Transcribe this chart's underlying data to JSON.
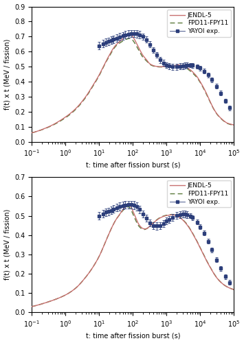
{
  "xlabel": "t: time after fission burst (s)",
  "ylabel": "f(t) x t (MeV / fission)",
  "subplot1": {
    "ylim": [
      0,
      0.9
    ],
    "yticks": [
      0,
      0.1,
      0.2,
      0.3,
      0.4,
      0.5,
      0.6,
      0.7,
      0.8,
      0.9
    ]
  },
  "subplot2": {
    "ylim": [
      0,
      0.7
    ],
    "yticks": [
      0,
      0.1,
      0.2,
      0.3,
      0.4,
      0.5,
      0.6,
      0.7
    ]
  },
  "jendl_color": "#c87070",
  "fpd_color": "#5a7a3a",
  "exp_color": "#2c3e7a",
  "exp_marker": "s",
  "exp_markersize": 2.5,
  "line_width": 1.0,
  "legend_labels": [
    "JENDL-5",
    "FPD11-FPY11",
    "YAYOI exp."
  ],
  "figsize": [
    3.55,
    5.0
  ],
  "dpi": 100
}
